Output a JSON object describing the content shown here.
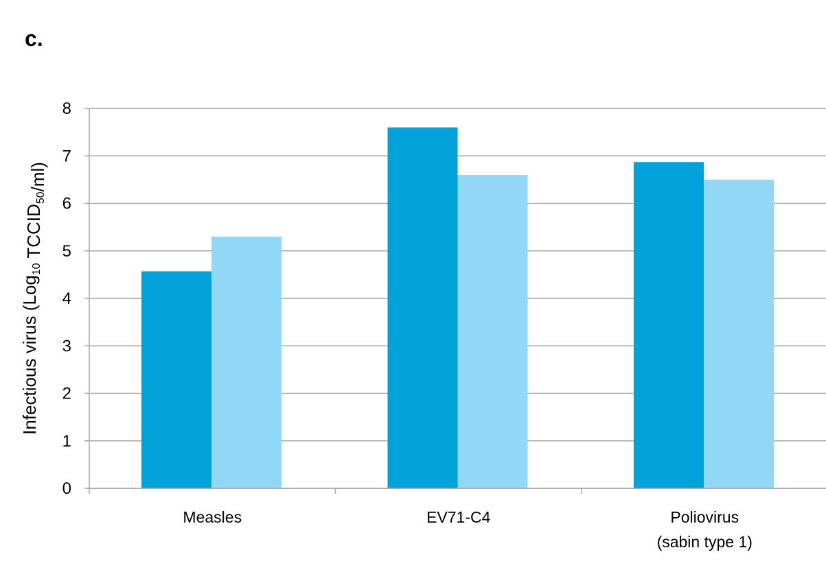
{
  "panel_label": "c.",
  "chart_data": {
    "type": "bar",
    "title": "",
    "xlabel": "",
    "ylabel": {
      "prefix": "Infectious virus (Log",
      "sub1": "10",
      "middle": " TCCID",
      "sub2": "50",
      "suffix": "/ml)"
    },
    "ylim": [
      0,
      8
    ],
    "yticks": [
      "0",
      "1",
      "2",
      "3",
      "4",
      "5",
      "6",
      "7",
      "8"
    ],
    "grid": true,
    "legend": "none",
    "categories": [
      [
        "Measles"
      ],
      [
        "EV71-C4"
      ],
      [
        "Poliovirus",
        "(sabin type 1)"
      ]
    ],
    "series": [
      {
        "values": [
          4.57,
          7.6,
          6.87
        ],
        "color": "#00a2d9"
      },
      {
        "values": [
          5.3,
          6.6,
          6.5
        ],
        "color": "#92d7f6"
      }
    ]
  }
}
